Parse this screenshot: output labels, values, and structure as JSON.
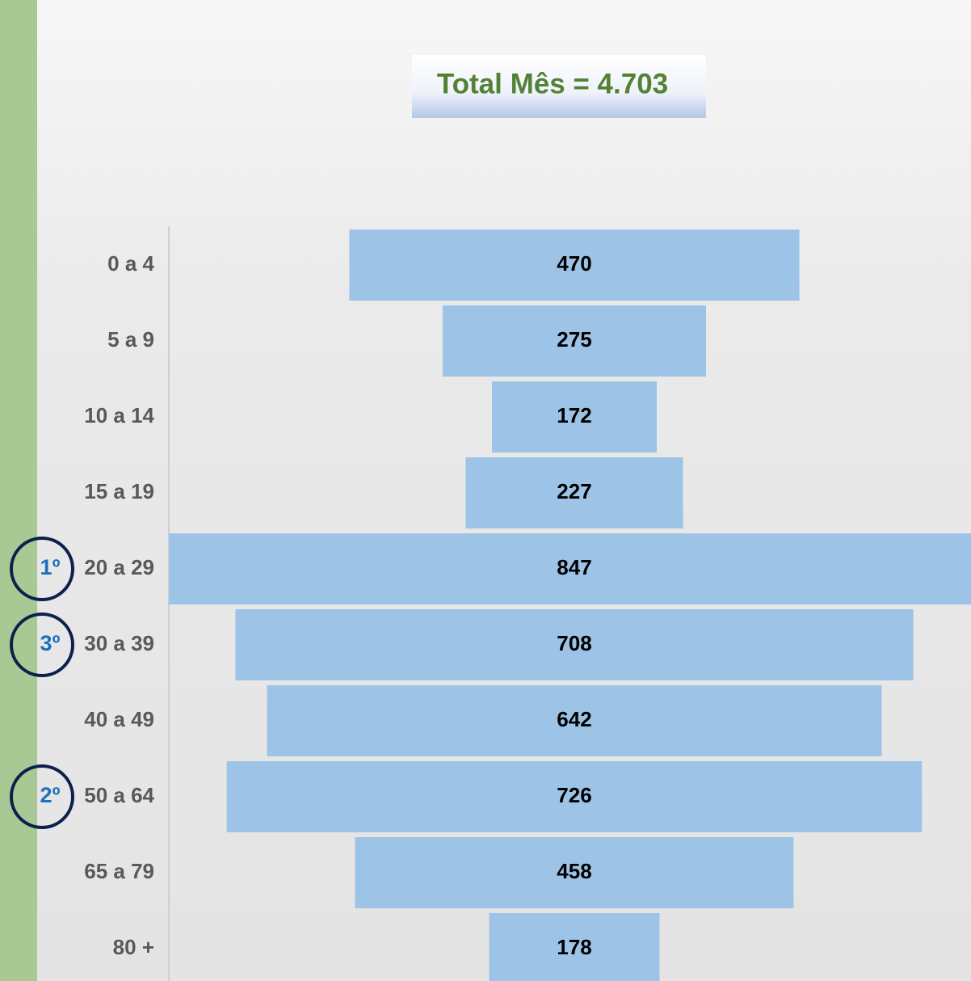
{
  "chart_data": {
    "type": "funnel",
    "title": "Total Mês = 4.703",
    "categories": [
      "0 a 4",
      "5 a 9",
      "10 a 14",
      "15 a 19",
      "20 a 29",
      "30 a 39",
      "40 a 49",
      "50 a 64",
      "65 a 79",
      "80 +"
    ],
    "values": [
      470,
      275,
      172,
      227,
      847,
      708,
      642,
      726,
      458,
      178
    ],
    "rank_labels": [
      null,
      null,
      null,
      null,
      "1º",
      "3º",
      null,
      "2º",
      null,
      null
    ],
    "color": "#9dc3e6"
  }
}
